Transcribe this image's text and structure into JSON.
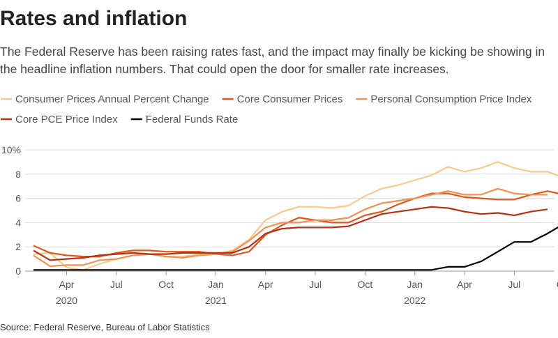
{
  "chart_data": {
    "type": "line",
    "title": "Rates and inflation",
    "subtitle": "The Federal Reserve has been raising rates fast, and the impact may finally be kicking be showing in the headline inflation numbers. That could open the door for smaller rate increases.",
    "source": "Source: Federal Reserve, Bureau of Labor Statistics",
    "x": [
      "2020-02",
      "2020-03",
      "2020-04",
      "2020-05",
      "2020-06",
      "2020-07",
      "2020-08",
      "2020-09",
      "2020-10",
      "2020-11",
      "2020-12",
      "2021-01",
      "2021-02",
      "2021-03",
      "2021-04",
      "2021-05",
      "2021-06",
      "2021-07",
      "2021-08",
      "2021-09",
      "2021-10",
      "2021-11",
      "2021-12",
      "2022-01",
      "2022-02",
      "2022-03",
      "2022-04",
      "2022-05",
      "2022-06",
      "2022-07",
      "2022-08",
      "2022-09",
      "2022-10"
    ],
    "series": [
      {
        "name": "Consumer Prices Annual Percent Change",
        "color": "#fcc98a",
        "values": [
          1.4,
          1.5,
          0.3,
          0.1,
          0.6,
          1.0,
          1.3,
          1.4,
          1.2,
          1.2,
          1.4,
          1.4,
          1.7,
          2.6,
          4.2,
          4.9,
          5.3,
          5.3,
          5.2,
          5.4,
          6.2,
          6.8,
          7.1,
          7.5,
          7.9,
          8.6,
          8.2,
          8.5,
          9.0,
          8.5,
          8.2,
          8.2,
          7.7
        ]
      },
      {
        "name": "Core Consumer Prices",
        "color": "#e0571c",
        "values": [
          2.1,
          1.5,
          1.3,
          1.2,
          1.2,
          1.5,
          1.7,
          1.7,
          1.6,
          1.6,
          1.6,
          1.4,
          1.3,
          1.6,
          3.0,
          3.8,
          4.4,
          4.2,
          4.0,
          4.0,
          4.6,
          4.9,
          5.5,
          6.0,
          6.4,
          6.4,
          6.1,
          6.0,
          5.9,
          5.9,
          6.3,
          6.6,
          6.3
        ]
      },
      {
        "name": "Personal Consumption Price Index",
        "color": "#f39150",
        "values": [
          1.3,
          0.4,
          0.5,
          0.5,
          0.9,
          1.0,
          1.3,
          1.4,
          1.2,
          1.1,
          1.3,
          1.4,
          1.6,
          2.5,
          3.6,
          4.0,
          4.0,
          4.2,
          4.2,
          4.4,
          5.1,
          5.6,
          5.8,
          6.0,
          6.3,
          6.6,
          6.3,
          6.3,
          6.8,
          6.4,
          6.3,
          6.3,
          null
        ]
      },
      {
        "name": "Core PCE Price Index",
        "color": "#b8300f",
        "values": [
          1.7,
          0.9,
          1.0,
          1.1,
          1.3,
          1.4,
          1.5,
          1.4,
          1.4,
          1.5,
          1.5,
          1.5,
          1.5,
          2.0,
          3.1,
          3.5,
          3.6,
          3.6,
          3.6,
          3.7,
          4.2,
          4.7,
          4.9,
          5.1,
          5.3,
          5.2,
          4.9,
          4.7,
          4.8,
          4.6,
          4.9,
          5.1,
          null
        ]
      },
      {
        "name": "Federal Funds Rate",
        "color": "#000000",
        "values": [
          0.1,
          0.1,
          0.1,
          0.1,
          0.1,
          0.1,
          0.1,
          0.1,
          0.1,
          0.1,
          0.1,
          0.1,
          0.1,
          0.1,
          0.1,
          0.1,
          0.1,
          0.1,
          0.1,
          0.1,
          0.1,
          0.1,
          0.1,
          0.1,
          0.1,
          0.35,
          0.35,
          0.8,
          1.6,
          2.4,
          2.4,
          3.1,
          3.9
        ]
      }
    ],
    "ylim": [
      0,
      10
    ],
    "yticks": [
      0,
      2,
      4,
      6,
      8,
      {
        "value": 10,
        "label": "10%"
      }
    ],
    "xticks": [
      {
        "value": "2020-04",
        "label": "Apr"
      },
      {
        "value": "2020-07",
        "label": "Jul"
      },
      {
        "value": "2020-10",
        "label": "Oct"
      },
      {
        "value": "2021-01",
        "label": "Jan"
      },
      {
        "value": "2021-04",
        "label": "Apr"
      },
      {
        "value": "2021-07",
        "label": "Jul"
      },
      {
        "value": "2021-10",
        "label": "Oct"
      },
      {
        "value": "2022-01",
        "label": "Jan"
      },
      {
        "value": "2022-04",
        "label": "Apr"
      },
      {
        "value": "2022-07",
        "label": "Jul"
      },
      {
        "value": "2022-10",
        "label": "Oct"
      }
    ],
    "xtick_years": [
      {
        "value": "2020-04",
        "label": "2020"
      },
      {
        "value": "2021-01",
        "label": "2021"
      },
      {
        "value": "2022-01",
        "label": "2022"
      }
    ],
    "grid": true
  }
}
